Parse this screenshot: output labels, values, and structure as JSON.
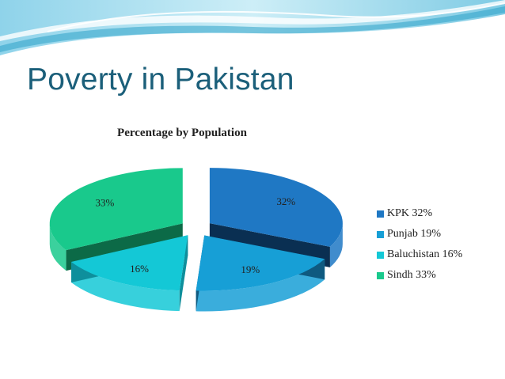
{
  "slide": {
    "title": "Poverty in Pakistan"
  },
  "colors": {
    "title": "#1b5f7a",
    "banner_light": "#bfe6f2",
    "banner_mid": "#7ccde6",
    "banner_dark": "#2ea3c9"
  },
  "chart_data": {
    "type": "pie",
    "style": "3d-exploded",
    "title": "Percentage by Population",
    "legend_position": "right",
    "slices": [
      {
        "name": "KPK",
        "value": 32,
        "label": "32%",
        "legend": "KPK 32%",
        "color": "#1f78c4",
        "side_color": "#0a2f52"
      },
      {
        "name": "Punjab",
        "value": 19,
        "label": "19%",
        "legend": "Punjab 19%",
        "color": "#179fd6",
        "side_color": "#0f5a80"
      },
      {
        "name": "Baluchistan",
        "value": 16,
        "label": "16%",
        "legend": "Baluchistan 16%",
        "color": "#14c8d6",
        "side_color": "#0e8f9c"
      },
      {
        "name": "Sindh",
        "value": 33,
        "label": "33%",
        "legend": "Sindh 33%",
        "color": "#19c98c",
        "side_color": "#0c6a47"
      }
    ]
  }
}
